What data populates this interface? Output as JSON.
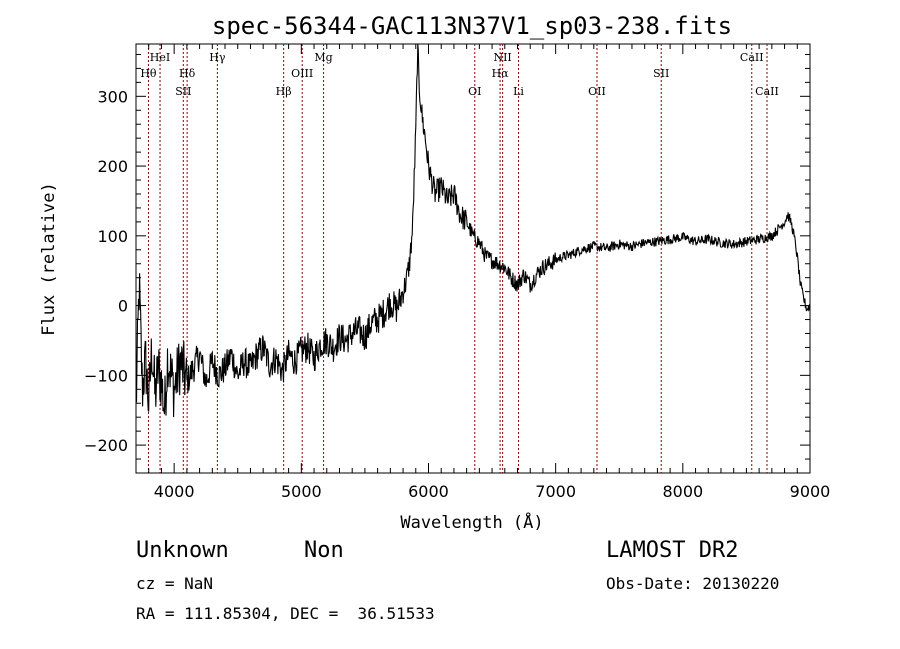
{
  "chart_data": {
    "type": "line",
    "title": "spec-56344-GAC113N37V1_sp03-238.fits",
    "xlabel": "Wavelength (Å)",
    "ylabel": "Flux (relative)",
    "xlim": [
      3700,
      9000
    ],
    "ylim": [
      -240,
      375
    ],
    "x_ticks": [
      4000,
      5000,
      6000,
      7000,
      8000,
      9000
    ],
    "y_ticks": [
      -200,
      -100,
      0,
      100,
      200,
      300
    ],
    "grid": false,
    "line_color": "#000000",
    "marker_color": "#8b0000",
    "series": [
      {
        "x": [
          3700,
          3725,
          3750,
          3775,
          3800,
          3825,
          3850,
          3875,
          3900,
          3925,
          3950,
          3975,
          4000,
          4050,
          4100,
          4150,
          4200,
          4250,
          4300,
          4350,
          4400,
          4450,
          4500,
          4550,
          4600,
          4650,
          4700,
          4750,
          4800,
          4850,
          4900,
          4950,
          5000,
          5050,
          5100,
          5150,
          5200,
          5250,
          5300,
          5350,
          5400,
          5450,
          5500,
          5550,
          5600,
          5650,
          5700,
          5750,
          5800,
          5825,
          5850,
          5875,
          5900,
          5915,
          5925,
          5950,
          5975,
          6000,
          6050,
          6100,
          6150,
          6200,
          6250,
          6300,
          6350,
          6400,
          6450,
          6500,
          6550,
          6600,
          6650,
          6700,
          6750,
          6800,
          6850,
          6900,
          6950,
          7000,
          7050,
          7100,
          7200,
          7300,
          7400,
          7500,
          7600,
          7700,
          7800,
          7900,
          8000,
          8100,
          8200,
          8300,
          8400,
          8500,
          8600,
          8700,
          8750,
          8800,
          8825,
          8850,
          8875,
          8900,
          8925,
          8950,
          8975,
          9000
        ],
        "y": [
          -150,
          30,
          -120,
          -80,
          -140,
          -60,
          -130,
          -90,
          -110,
          -150,
          -70,
          -100,
          -120,
          -80,
          -110,
          -90,
          -70,
          -110,
          -80,
          -100,
          -90,
          -70,
          -100,
          -80,
          -90,
          -70,
          -60,
          -85,
          -75,
          -95,
          -70,
          -80,
          -65,
          -60,
          -75,
          -55,
          -50,
          -60,
          -45,
          -50,
          -40,
          -35,
          -45,
          -25,
          -20,
          -10,
          5,
          -5,
          20,
          35,
          60,
          110,
          250,
          375,
          320,
          270,
          240,
          200,
          160,
          170,
          150,
          160,
          130,
          120,
          100,
          90,
          70,
          65,
          60,
          55,
          40,
          30,
          45,
          30,
          45,
          55,
          60,
          65,
          70,
          72,
          80,
          85,
          82,
          88,
          85,
          90,
          92,
          95,
          98,
          92,
          95,
          90,
          88,
          92,
          95,
          100,
          110,
          120,
          130,
          120,
          100,
          70,
          30,
          10,
          -5,
          0
        ]
      }
    ],
    "line_markers": [
      {
        "label": "Hθ",
        "wavelength": 3798,
        "row": 2
      },
      {
        "label": "HeI",
        "wavelength": 3889,
        "row": 1
      },
      {
        "label": "Hδ",
        "wavelength": 4102,
        "row": 2
      },
      {
        "label": "SII",
        "wavelength": 4072,
        "row": 3
      },
      {
        "label": "Hγ",
        "wavelength": 4340,
        "row": 1
      },
      {
        "label": "Hβ",
        "wavelength": 4861,
        "row": 3
      },
      {
        "label": "OIII",
        "wavelength": 5007,
        "row": 2
      },
      {
        "label": "Mg",
        "wavelength": 5175,
        "row": 1
      },
      {
        "label": "OI",
        "wavelength": 6364,
        "row": 3
      },
      {
        "label": "NII",
        "wavelength": 6583,
        "row": 1
      },
      {
        "label": "Hα",
        "wavelength": 6563,
        "row": 2
      },
      {
        "label": "Li",
        "wavelength": 6708,
        "row": 3
      },
      {
        "label": "OII",
        "wavelength": 7325,
        "row": 3
      },
      {
        "label": "SII",
        "wavelength": 7830,
        "row": 2
      },
      {
        "label": "CaII",
        "wavelength": 8542,
        "row": 1
      },
      {
        "label": "CaII",
        "wavelength": 8662,
        "row": 3
      }
    ]
  },
  "info": {
    "class": "Unknown",
    "subclass": "Non",
    "survey": "LAMOST DR2",
    "cz": "cz = NaN",
    "obs_date": "Obs-Date: 20130220",
    "coords": "RA = 111.85304, DEC =  36.51533"
  }
}
